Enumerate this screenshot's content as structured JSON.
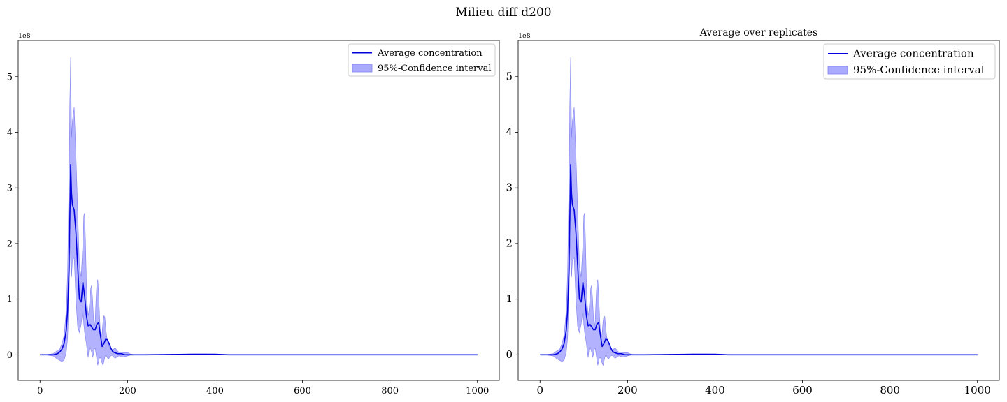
{
  "figure": {
    "title": "Milieu diff d200"
  },
  "colors": {
    "line": "#0000dd",
    "band": "#aaaaff",
    "band_edge": "#8080ee"
  },
  "chart_data": [
    {
      "type": "line",
      "title": "",
      "xlabel": "",
      "ylabel": "",
      "y_offset_label": "1e8",
      "xlim": [
        -50,
        1050
      ],
      "ylim": [
        -0.46,
        5.65
      ],
      "xticks": [
        0,
        200,
        400,
        600,
        800,
        1000
      ],
      "yticks": [
        0,
        1,
        2,
        3,
        4,
        5
      ],
      "grid": false,
      "legend_position": "top-right",
      "legend": [
        "Average concentration",
        "95%-Confidence interval"
      ],
      "series": [
        {
          "name": "Average concentration",
          "x": [
            0,
            10,
            20,
            30,
            40,
            45,
            50,
            55,
            60,
            63,
            66,
            68,
            70,
            72,
            74,
            78,
            82,
            86,
            90,
            94,
            98,
            102,
            106,
            110,
            114,
            118,
            122,
            126,
            130,
            134,
            138,
            142,
            146,
            150,
            154,
            158,
            162,
            166,
            170,
            174,
            178,
            182,
            186,
            190,
            195,
            200,
            205,
            210,
            220,
            240,
            300,
            350,
            380,
            400,
            430,
            500,
            600,
            700,
            800,
            900,
            1000
          ],
          "y": [
            0,
            0,
            0,
            0,
            0.02,
            0.05,
            0.1,
            0.2,
            0.45,
            0.8,
            1.5,
            2.4,
            3.42,
            2.9,
            2.7,
            2.6,
            2.2,
            1.6,
            1.0,
            0.95,
            1.3,
            1.05,
            0.7,
            0.52,
            0.55,
            0.5,
            0.45,
            0.45,
            0.55,
            0.58,
            0.35,
            0.15,
            0.2,
            0.28,
            0.27,
            0.2,
            0.12,
            0.06,
            0.04,
            0.03,
            0.02,
            0.02,
            0.02,
            0.01,
            0,
            0,
            0,
            0,
            0,
            0,
            0.005,
            0.01,
            0.01,
            0.01,
            0,
            0,
            0,
            0,
            0,
            0,
            0
          ]
        },
        {
          "name": "95%-Confidence interval",
          "x": [
            0,
            10,
            20,
            30,
            35,
            40,
            45,
            50,
            55,
            60,
            63,
            66,
            68,
            70,
            72,
            74,
            78,
            82,
            86,
            90,
            94,
            98,
            100,
            102,
            104,
            106,
            108,
            110,
            112,
            114,
            116,
            118,
            120,
            122,
            124,
            126,
            128,
            130,
            132,
            134,
            136,
            138,
            140,
            142,
            144,
            146,
            148,
            150,
            152,
            154,
            156,
            158,
            160,
            162,
            164,
            166,
            168,
            170,
            172,
            174,
            176,
            178,
            180,
            182,
            185,
            190,
            195,
            200,
            205,
            210,
            220,
            240,
            300,
            350,
            380,
            400,
            430,
            500,
            600,
            700,
            800,
            900,
            1000
          ],
          "upper": [
            0,
            0,
            0.01,
            0.02,
            0.05,
            0.08,
            0.1,
            0.2,
            0.35,
            0.8,
            1.5,
            3.0,
            4.5,
            5.35,
            3.9,
            4.2,
            4.45,
            3.6,
            2.6,
            1.6,
            1.4,
            2.0,
            2.5,
            2.55,
            2.0,
            1.3,
            0.9,
            0.7,
            0.8,
            1.0,
            1.2,
            1.25,
            1.0,
            0.7,
            0.5,
            0.6,
            1.0,
            1.3,
            1.35,
            1.1,
            0.7,
            0.4,
            0.3,
            0.4,
            0.6,
            0.7,
            0.68,
            0.5,
            0.35,
            0.25,
            0.2,
            0.15,
            0.12,
            0.1,
            0.08,
            0.08,
            0.1,
            0.12,
            0.12,
            0.1,
            0.08,
            0.06,
            0.05,
            0.05,
            0.05,
            0.04,
            0.04,
            0.04,
            0.02,
            0.01,
            0,
            0,
            0.01,
            0.015,
            0.015,
            0.01,
            0,
            0,
            0,
            0,
            0,
            0,
            0
          ],
          "lower": [
            0,
            0,
            -0.01,
            -0.02,
            -0.05,
            -0.08,
            -0.1,
            -0.12,
            -0.1,
            0.05,
            0.3,
            1.0,
            1.6,
            2.1,
            1.4,
            1.7,
            1.75,
            1.0,
            0.5,
            0.4,
            0.55,
            0.8,
            0.55,
            0.4,
            0.3,
            0.2,
            0.05,
            -0.05,
            0.1,
            0.15,
            0.1,
            0.05,
            -0.05,
            0,
            0.1,
            0.12,
            0.02,
            -0.1,
            -0.19,
            -0.12,
            -0.05,
            -0.05,
            -0.1,
            -0.15,
            -0.19,
            -0.12,
            -0.05,
            0,
            -0.02,
            -0.05,
            -0.08,
            -0.06,
            -0.03,
            -0.02,
            -0.01,
            -0.02,
            -0.04,
            -0.05,
            -0.06,
            -0.05,
            -0.04,
            -0.03,
            -0.02,
            -0.02,
            -0.03,
            -0.04,
            -0.03,
            -0.02,
            -0.01,
            0,
            0,
            0,
            0,
            0.005,
            0.005,
            0.005,
            0,
            0,
            0,
            0,
            0,
            0,
            0
          ]
        }
      ]
    },
    {
      "type": "line",
      "title": "Average over replicates",
      "xlabel": "",
      "ylabel": "",
      "y_offset_label": "1e8",
      "xlim": [
        -50,
        1050
      ],
      "ylim": [
        -0.46,
        5.65
      ],
      "xticks": [
        0,
        200,
        400,
        600,
        800,
        1000
      ],
      "yticks": [
        0,
        1,
        2,
        3,
        4,
        5
      ],
      "grid": false,
      "legend_position": "top-right",
      "legend": [
        "Average concentration",
        "95%-Confidence interval"
      ],
      "series": [
        {
          "name": "Average concentration",
          "x": [
            0,
            10,
            20,
            30,
            40,
            45,
            50,
            55,
            60,
            63,
            66,
            68,
            70,
            72,
            74,
            78,
            82,
            86,
            90,
            94,
            98,
            102,
            106,
            110,
            114,
            118,
            122,
            126,
            130,
            134,
            138,
            142,
            146,
            150,
            154,
            158,
            162,
            166,
            170,
            174,
            178,
            182,
            186,
            190,
            195,
            200,
            205,
            210,
            220,
            240,
            300,
            350,
            380,
            400,
            430,
            500,
            600,
            700,
            800,
            900,
            1000
          ],
          "y": [
            0,
            0,
            0,
            0,
            0.02,
            0.05,
            0.1,
            0.2,
            0.45,
            0.8,
            1.5,
            2.4,
            3.42,
            2.9,
            2.7,
            2.6,
            2.2,
            1.6,
            1.0,
            0.95,
            1.3,
            1.05,
            0.7,
            0.52,
            0.55,
            0.5,
            0.45,
            0.45,
            0.55,
            0.58,
            0.35,
            0.15,
            0.2,
            0.28,
            0.27,
            0.2,
            0.12,
            0.06,
            0.04,
            0.03,
            0.02,
            0.02,
            0.02,
            0.01,
            0,
            0,
            0,
            0,
            0,
            0,
            0.005,
            0.01,
            0.01,
            0.01,
            0,
            0,
            0,
            0,
            0,
            0,
            0
          ]
        },
        {
          "name": "95%-Confidence interval",
          "x": [
            0,
            10,
            20,
            30,
            35,
            40,
            45,
            50,
            55,
            60,
            63,
            66,
            68,
            70,
            72,
            74,
            78,
            82,
            86,
            90,
            94,
            98,
            100,
            102,
            104,
            106,
            108,
            110,
            112,
            114,
            116,
            118,
            120,
            122,
            124,
            126,
            128,
            130,
            132,
            134,
            136,
            138,
            140,
            142,
            144,
            146,
            148,
            150,
            152,
            154,
            156,
            158,
            160,
            162,
            164,
            166,
            168,
            170,
            172,
            174,
            176,
            178,
            180,
            182,
            185,
            190,
            195,
            200,
            205,
            210,
            220,
            240,
            300,
            350,
            380,
            400,
            430,
            500,
            600,
            700,
            800,
            900,
            1000
          ],
          "upper": [
            0,
            0,
            0.01,
            0.02,
            0.05,
            0.08,
            0.1,
            0.2,
            0.35,
            0.8,
            1.5,
            3.0,
            4.5,
            5.35,
            3.9,
            4.2,
            4.45,
            3.6,
            2.6,
            1.6,
            1.4,
            2.0,
            2.5,
            2.55,
            2.0,
            1.3,
            0.9,
            0.7,
            0.8,
            1.0,
            1.2,
            1.25,
            1.0,
            0.7,
            0.5,
            0.6,
            1.0,
            1.3,
            1.35,
            1.1,
            0.7,
            0.4,
            0.3,
            0.4,
            0.6,
            0.7,
            0.68,
            0.5,
            0.35,
            0.25,
            0.2,
            0.15,
            0.12,
            0.1,
            0.08,
            0.08,
            0.1,
            0.12,
            0.12,
            0.1,
            0.08,
            0.06,
            0.05,
            0.05,
            0.05,
            0.04,
            0.04,
            0.04,
            0.02,
            0.01,
            0,
            0,
            0.01,
            0.015,
            0.015,
            0.01,
            0,
            0,
            0,
            0,
            0,
            0,
            0
          ],
          "lower": [
            0,
            0,
            -0.01,
            -0.02,
            -0.05,
            -0.08,
            -0.1,
            -0.12,
            -0.1,
            0.05,
            0.3,
            1.0,
            1.6,
            2.1,
            1.4,
            1.7,
            1.75,
            1.0,
            0.5,
            0.4,
            0.55,
            0.8,
            0.55,
            0.4,
            0.3,
            0.2,
            0.05,
            -0.05,
            0.1,
            0.15,
            0.1,
            0.05,
            -0.05,
            0,
            0.1,
            0.12,
            0.02,
            -0.1,
            -0.19,
            -0.12,
            -0.05,
            -0.05,
            -0.1,
            -0.15,
            -0.19,
            -0.12,
            -0.05,
            0,
            -0.02,
            -0.05,
            -0.08,
            -0.06,
            -0.03,
            -0.02,
            -0.01,
            -0.02,
            -0.04,
            -0.05,
            -0.06,
            -0.05,
            -0.04,
            -0.03,
            -0.02,
            -0.02,
            -0.03,
            -0.04,
            -0.03,
            -0.02,
            -0.01,
            0,
            0,
            0,
            0,
            0.005,
            0.005,
            0.005,
            0,
            0,
            0,
            0,
            0,
            0,
            0
          ]
        }
      ]
    }
  ]
}
